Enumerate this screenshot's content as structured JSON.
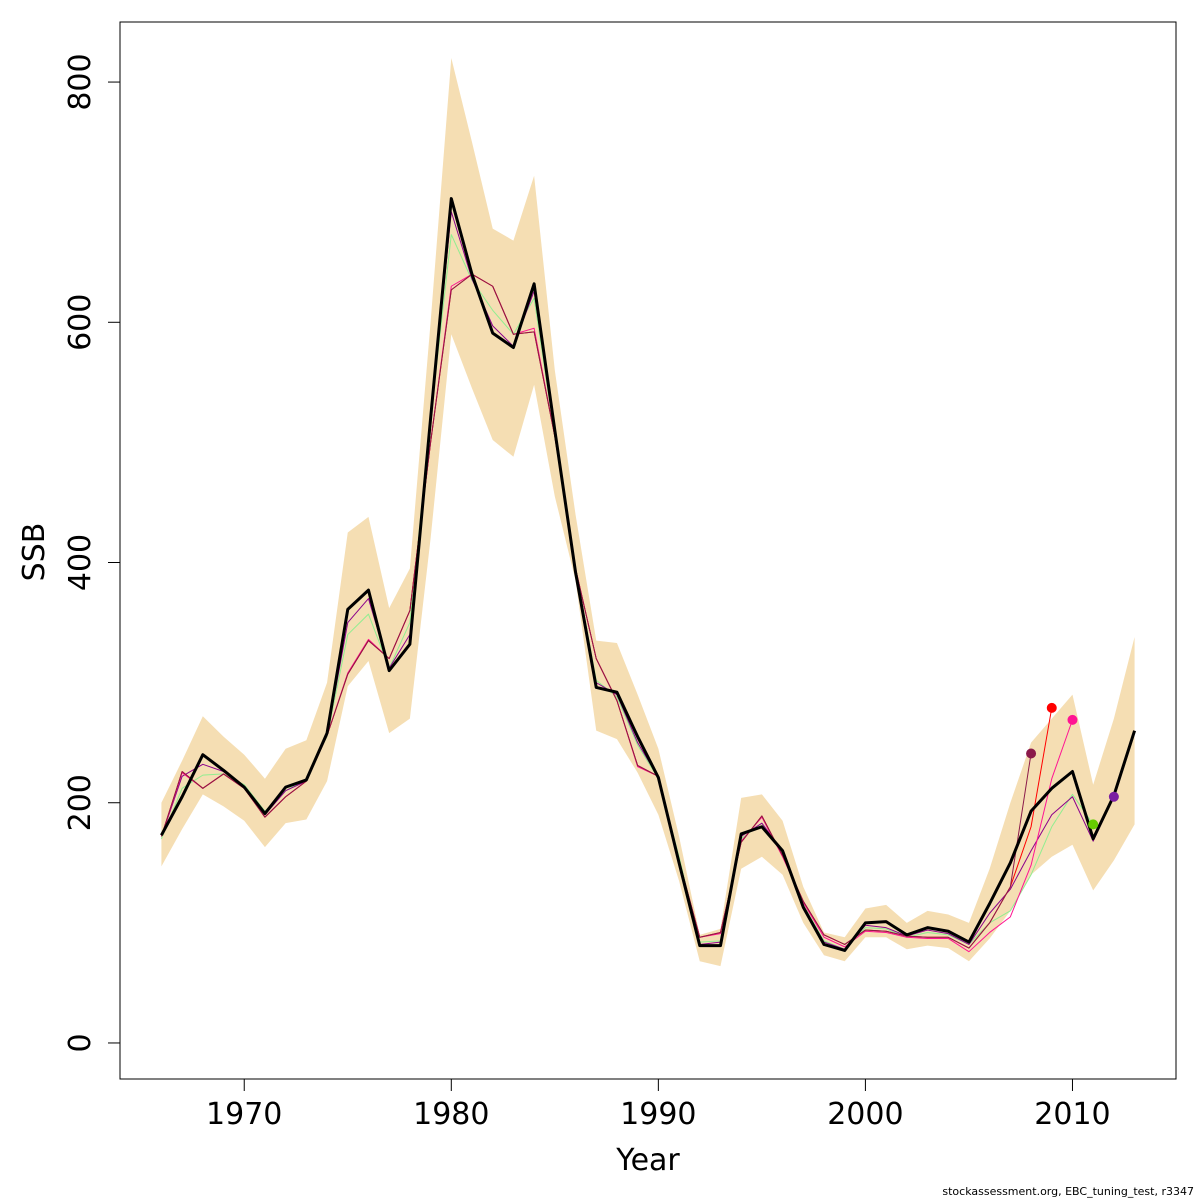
{
  "chart_data": {
    "type": "line",
    "xlabel": "Year",
    "ylabel": "SSB",
    "xlim": [
      1964,
      2015
    ],
    "ylim": [
      -30,
      850
    ],
    "x_ticks": [
      1970,
      1980,
      1990,
      2000,
      2010
    ],
    "y_ticks": [
      0,
      200,
      400,
      600,
      800
    ],
    "x_tick_labels": [
      "1970",
      "1980",
      "1990",
      "2000",
      "2010"
    ],
    "y_tick_labels": [
      "0",
      "200",
      "400",
      "600",
      "800"
    ],
    "grid": false,
    "legend": "none",
    "band": {
      "color": "#F5DEB3",
      "x": [
        1966,
        1967,
        1968,
        1969,
        1970,
        1971,
        1972,
        1973,
        1974,
        1975,
        1976,
        1977,
        1978,
        1979,
        1980,
        1981,
        1982,
        1983,
        1984,
        1985,
        1986,
        1987,
        1988,
        1989,
        1990,
        1991,
        1992,
        1993,
        1994,
        1995,
        1996,
        1997,
        1998,
        1999,
        2000,
        2001,
        2002,
        2003,
        2004,
        2005,
        2006,
        2007,
        2008,
        2009,
        2010,
        2011,
        2012,
        2013
      ],
      "upper": [
        200,
        235,
        272,
        255,
        240,
        220,
        245,
        252,
        300,
        425,
        438,
        362,
        395,
        600,
        820,
        750,
        678,
        668,
        722,
        560,
        440,
        335,
        333,
        290,
        245,
        172,
        90,
        95,
        204,
        207,
        185,
        130,
        92,
        88,
        112,
        115,
        100,
        110,
        107,
        100,
        145,
        200,
        250,
        270,
        290,
        215,
        270,
        338
      ],
      "lower": [
        147,
        178,
        207,
        197,
        185,
        163,
        183,
        186,
        218,
        297,
        318,
        258,
        270,
        420,
        590,
        545,
        502,
        488,
        548,
        455,
        385,
        260,
        253,
        225,
        190,
        135,
        68,
        64,
        145,
        155,
        140,
        100,
        73,
        68,
        88,
        88,
        78,
        81,
        79,
        68,
        87,
        110,
        140,
        155,
        165,
        127,
        152,
        182
      ]
    },
    "series": [
      {
        "color": "#000000",
        "width": 3,
        "x": [
          1966,
          1967,
          1968,
          1969,
          1970,
          1971,
          1972,
          1973,
          1974,
          1975,
          1976,
          1977,
          1978,
          1979,
          1980,
          1981,
          1982,
          1983,
          1984,
          1985,
          1986,
          1987,
          1988,
          1989,
          1990,
          1991,
          1992,
          1993,
          1994,
          1995,
          1996,
          1997,
          1998,
          1999,
          2000,
          2001,
          2002,
          2003,
          2004,
          2005,
          2006,
          2007,
          2008,
          2009,
          2010,
          2011,
          2012,
          2013
        ],
        "values": [
          173,
          205,
          240,
          227,
          213,
          191,
          213,
          219,
          258,
          361,
          377,
          310,
          332,
          520,
          703,
          640,
          591,
          579,
          632,
          510,
          392,
          296,
          292,
          255,
          221,
          150,
          81,
          81,
          174,
          180,
          160,
          113,
          82,
          77,
          100,
          101,
          90,
          96,
          93,
          84,
          116,
          150,
          193,
          212,
          226,
          170,
          206,
          260
        ]
      },
      {
        "color": "#90EE90",
        "width": 1,
        "x": [
          1966,
          1967,
          1968,
          1969,
          1970,
          1971,
          1972,
          1973,
          1974,
          1975,
          1976,
          1977,
          1978,
          1979,
          1980,
          1981,
          1982,
          1983,
          1984,
          1985,
          1986,
          1987,
          1988,
          1989,
          1990,
          1991,
          1992,
          1993,
          1994,
          1995,
          1996,
          1997,
          1998,
          1999,
          2000,
          2001,
          2002,
          2003,
          2004,
          2005,
          2006,
          2007,
          2008,
          2009,
          2010,
          2011
        ],
        "values": [
          170,
          212,
          223,
          224,
          215,
          193,
          210,
          220,
          255,
          340,
          357,
          312,
          350,
          520,
          673,
          635,
          610,
          590,
          620,
          505,
          395,
          302,
          288,
          248,
          220,
          155,
          84,
          85,
          170,
          183,
          158,
          115,
          85,
          78,
          96,
          95,
          88,
          92,
          90,
          82,
          100,
          110,
          140,
          180,
          207,
          182
        ]
      },
      {
        "color": "#8B008B",
        "width": 1,
        "x": [
          1966,
          1967,
          1968,
          1969,
          1970,
          1971,
          1972,
          1973,
          1974,
          1975,
          1976,
          1977,
          1978,
          1979,
          1980,
          1981,
          1982,
          1983,
          1984,
          1985,
          1986,
          1987,
          1988,
          1989,
          1990,
          1991,
          1992,
          1993,
          1994,
          1995,
          1996,
          1997,
          1998,
          1999,
          2000,
          2001,
          2002,
          2003,
          2004,
          2005,
          2006,
          2007,
          2008,
          2009,
          2010,
          2011,
          2012
        ],
        "values": [
          172,
          222,
          232,
          226,
          213,
          190,
          210,
          218,
          256,
          350,
          370,
          312,
          340,
          520,
          692,
          636,
          597,
          580,
          626,
          508,
          390,
          300,
          290,
          250,
          221,
          152,
          82,
          84,
          172,
          183,
          160,
          114,
          84,
          78,
          98,
          96,
          89,
          94,
          91,
          82,
          108,
          128,
          160,
          190,
          205,
          168,
          205
        ]
      },
      {
        "color": "#FF1493",
        "width": 1,
        "x": [
          1966,
          1967,
          1968,
          1969,
          1970,
          1971,
          1972,
          1973,
          1974,
          1975,
          1976,
          1977,
          1978,
          1979,
          1980,
          1981,
          1982,
          1983,
          1984,
          1985,
          1986,
          1987,
          1988,
          1989,
          1990,
          1991,
          1992,
          1993,
          1994,
          1995,
          1996,
          1997,
          1998,
          1999,
          2000,
          2001,
          2002,
          2003,
          2004,
          2005,
          2006,
          2007,
          2008,
          2009,
          2010
        ],
        "values": [
          172,
          225,
          212,
          224,
          212,
          188,
          205,
          218,
          256,
          308,
          336,
          320,
          360,
          500,
          630,
          640,
          630,
          590,
          595,
          505,
          395,
          320,
          285,
          230,
          222,
          150,
          88,
          91,
          168,
          188,
          155,
          117,
          88,
          80,
          93,
          92,
          88,
          87,
          87,
          76,
          92,
          105,
          148,
          220,
          269
        ]
      },
      {
        "color": "#FF0000",
        "width": 1,
        "x": [
          1966,
          1967,
          1968,
          1969,
          1970,
          1971,
          1972,
          1973,
          1974,
          1975,
          1976,
          1977,
          1978,
          1979,
          1980,
          1981,
          1982,
          1983,
          1984,
          1985,
          1986,
          1987,
          1988,
          1989,
          1990,
          1991,
          1992,
          1993,
          1994,
          1995,
          1996,
          1997,
          1998,
          1999,
          2000,
          2001,
          2002,
          2003,
          2004,
          2005,
          2006,
          2007,
          2008,
          2009
        ],
        "values": [
          172,
          226,
          212,
          224,
          212,
          188,
          205,
          218,
          256,
          307,
          335,
          320,
          360,
          500,
          627,
          640,
          630,
          590,
          592,
          505,
          395,
          320,
          285,
          231,
          222,
          152,
          88,
          92,
          167,
          189,
          156,
          118,
          90,
          82,
          94,
          93,
          89,
          88,
          88,
          79,
          100,
          130,
          180,
          279
        ]
      },
      {
        "color": "#8B1A4A",
        "width": 1,
        "x": [
          1966,
          1967,
          1968,
          1969,
          1970,
          1971,
          1972,
          1973,
          1974,
          1975,
          1976,
          1977,
          1978,
          1979,
          1980,
          1981,
          1982,
          1983,
          1984,
          1985,
          1986,
          1987,
          1988,
          1989,
          1990,
          1991,
          1992,
          1993,
          1994,
          1995,
          1996,
          1997,
          1998,
          1999,
          2000,
          2001,
          2002,
          2003,
          2004,
          2005,
          2006,
          2007,
          2008
        ],
        "values": [
          172,
          226,
          212,
          224,
          212,
          188,
          205,
          218,
          256,
          307,
          335,
          320,
          360,
          500,
          627,
          640,
          630,
          590,
          592,
          505,
          395,
          320,
          285,
          231,
          222,
          152,
          88,
          92,
          167,
          189,
          156,
          118,
          90,
          82,
          94,
          93,
          89,
          88,
          88,
          79,
          100,
          130,
          241
        ]
      }
    ],
    "endpoints": [
      {
        "x": 2008,
        "y": 241,
        "color": "#8B1A4A"
      },
      {
        "x": 2009,
        "y": 279,
        "color": "#FF0000"
      },
      {
        "x": 2010,
        "y": 269,
        "color": "#FF1493"
      },
      {
        "x": 2011,
        "y": 182,
        "color": "#66CC00"
      },
      {
        "x": 2012,
        "y": 205,
        "color": "#7B1FA2"
      }
    ]
  },
  "footer": "stockassessment.org, EBC_tuning_test, r3347"
}
